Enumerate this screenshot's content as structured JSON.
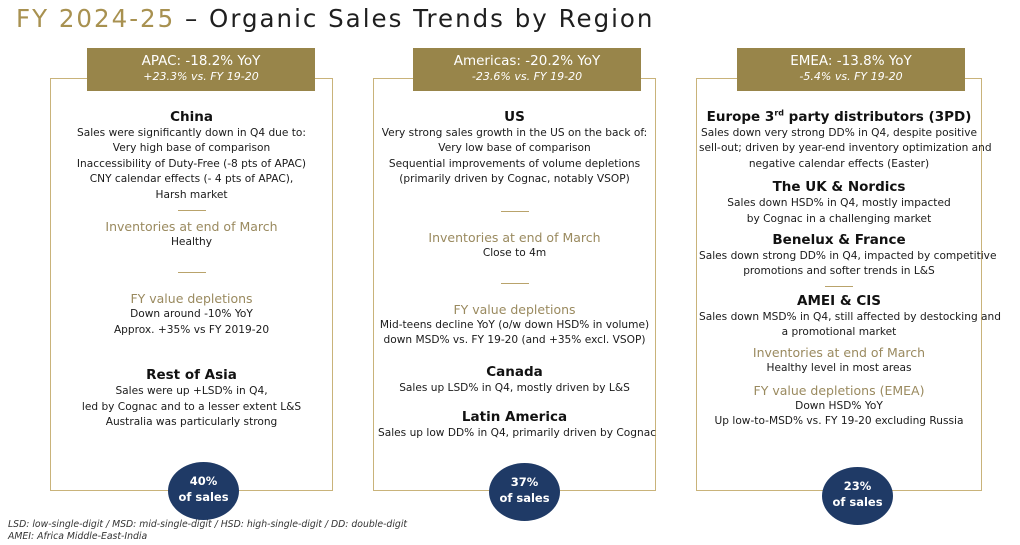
{
  "title": {
    "year": "FY 2024-25",
    "rest": " – Organic Sales Trends by Region"
  },
  "apac": {
    "header": {
      "main": "APAC: -18.2% YoY",
      "sub": "+23.3% vs. FY 19-20"
    },
    "china": {
      "title": "China",
      "lines": [
        "Sales were significantly down in Q4 due to:",
        "Very high base of comparison",
        "Inaccessibility of Duty-Free (-8 pts of APAC)",
        "CNY calendar effects (- 4 pts of APAC),",
        "Harsh market"
      ]
    },
    "inventories": {
      "title": "Inventories at end of March",
      "value": "Healthy"
    },
    "depletions": {
      "title": "FY value depletions",
      "lines": [
        "Down around -10% YoY",
        "Approx. +35% vs FY 2019-20"
      ]
    },
    "rest_of_asia": {
      "title": "Rest of Asia",
      "lines": [
        "Sales were up +LSD% in Q4,",
        "led by Cognac and to a lesser extent L&S",
        "Australia was particularly strong"
      ]
    },
    "badge": {
      "pct": "40%",
      "label": "of sales"
    }
  },
  "americas": {
    "header": {
      "main": "Americas: -20.2% YoY",
      "sub": "-23.6% vs. FY 19-20"
    },
    "us": {
      "title": "US",
      "lines": [
        "Very strong sales growth in the US on the back of:",
        "Very low base of comparison",
        "Sequential improvements of volume depletions",
        "(primarily driven by Cognac, notably VSOP)"
      ]
    },
    "inventories": {
      "title": "Inventories at end of March",
      "value": "Close to 4m"
    },
    "depletions": {
      "title": "FY value depletions",
      "lines": [
        "Mid-teens decline YoY (o/w down HSD% in volume)",
        "down MSD% vs. FY 19-20 (and +35% excl. VSOP)"
      ]
    },
    "canada": {
      "title": "Canada",
      "lines": [
        "Sales up LSD% in Q4, mostly driven by L&S"
      ]
    },
    "latin_america": {
      "title": "Latin America",
      "lines": [
        "Sales up low DD% in Q4, primarily driven by Cognac"
      ]
    },
    "badge": {
      "pct": "37%",
      "label": "of sales"
    }
  },
  "emea": {
    "header": {
      "main": "EMEA: -13.8% YoY",
      "sub": "-5.4% vs. FY 19-20"
    },
    "europe": {
      "title_pre": "Europe 3",
      "title_sup": "rd",
      "title_post": " party distributors (3PD)",
      "lines": [
        "Sales down very strong DD% in Q4, despite positive",
        "sell-out; driven by year-end inventory optimization and",
        "negative calendar effects (Easter)"
      ]
    },
    "uk_nordics": {
      "title": "The UK & Nordics",
      "lines": [
        "Sales down HSD% in Q4, mostly impacted",
        "by Cognac in a challenging market"
      ]
    },
    "benelux_france": {
      "title": "Benelux & France",
      "lines": [
        "Sales down strong DD% in Q4, impacted by competitive",
        "promotions and softer trends in L&S"
      ]
    },
    "amei_cis": {
      "title": "AMEI & CIS",
      "lines": [
        "Sales down MSD% in Q4, still affected by destocking and",
        "a promotional market"
      ]
    },
    "inventories": {
      "title": "Inventories at end of March",
      "value": "Healthy level in most areas"
    },
    "depletions": {
      "title": "FY value depletions (EMEA)",
      "lines": [
        "Down HSD% YoY",
        "Up low-to-MSD% vs. FY 19-20 excluding Russia"
      ]
    },
    "badge": {
      "pct": "23%",
      "label": "of sales"
    }
  },
  "footnotes": [
    "LSD: low-single-digit / MSD: mid-single-digit / HSD: high-single-digit / DD: double-digit",
    "AMEI: Africa Middle-East-India"
  ]
}
